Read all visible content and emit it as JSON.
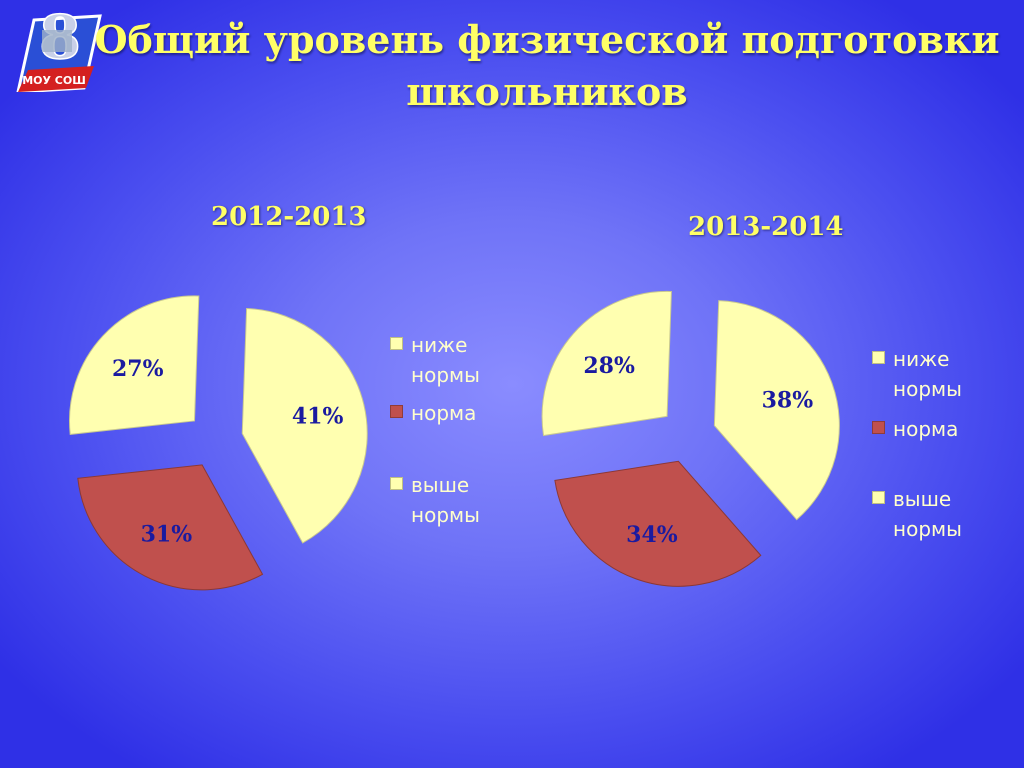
{
  "title": "Общий уровень физической подготовки школьников",
  "logo": {
    "text": "МОУ СОШ",
    "icon": "school-emblem-icon"
  },
  "colors": {
    "below": "#ffffb0",
    "norm": "#c0504d",
    "above": "#ffffb0",
    "title": "#ffff66",
    "label": "#1a1aa0"
  },
  "legend": [
    {
      "label": "ниже нормы",
      "color": "#ffffb0"
    },
    {
      "label": "норма",
      "color": "#c0504d"
    },
    {
      "label": "выше нормы",
      "color": "#ffffb0"
    }
  ],
  "chart_data": [
    {
      "type": "pie",
      "title": "2012-2013",
      "categories": [
        "ниже нормы",
        "норма",
        "выше нормы"
      ],
      "values": [
        41,
        31,
        27
      ],
      "labels": [
        "41%",
        "31%",
        "27%"
      ]
    },
    {
      "type": "pie",
      "title": "2013-2014",
      "categories": [
        "ниже нормы",
        "норма",
        "выше нормы"
      ],
      "values": [
        38,
        34,
        28
      ],
      "labels": [
        "38%",
        "34%",
        "28%"
      ]
    }
  ]
}
